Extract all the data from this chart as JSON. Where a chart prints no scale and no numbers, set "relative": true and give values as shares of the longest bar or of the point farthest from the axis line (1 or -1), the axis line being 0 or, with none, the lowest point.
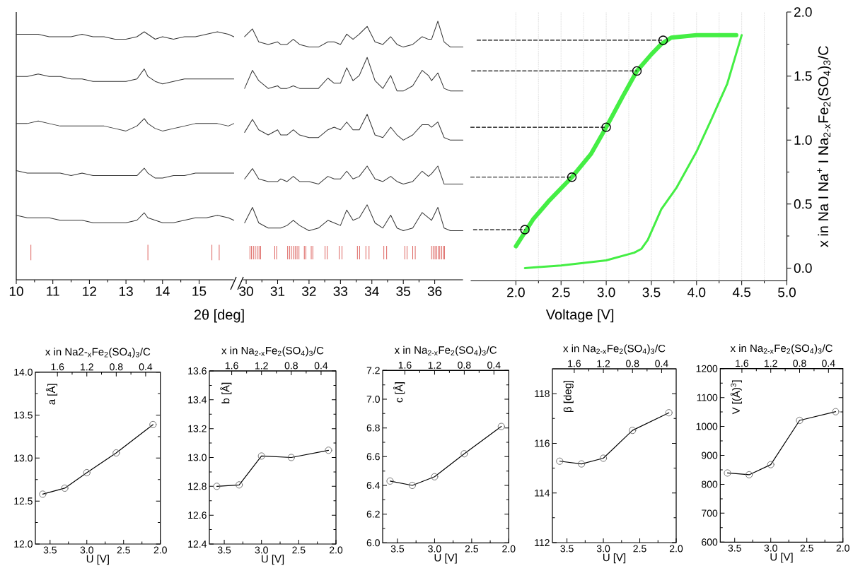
{
  "chart_data": [
    {
      "type": "line",
      "relative": true,
      "xlabel": "2θ [deg]",
      "xlim": [
        10,
        15.95
      ],
      "xticks": [
        10,
        11,
        12,
        13,
        14,
        15
      ],
      "x": [
        10.0,
        10.3,
        10.6,
        10.9,
        11.2,
        11.5,
        11.8,
        12.1,
        12.4,
        12.7,
        13.0,
        13.3,
        13.5,
        13.6,
        13.8,
        14.0,
        14.3,
        14.6,
        14.9,
        15.2,
        15.5,
        15.8,
        15.95
      ],
      "series": [
        {
          "color": "#333333",
          "values": [
            0.99,
            0.99,
            0.99,
            0.98,
            0.98,
            0.98,
            0.99,
            0.98,
            0.98,
            0.97,
            0.97,
            0.98,
            1.0,
            0.99,
            0.97,
            0.98,
            0.97,
            0.98,
            0.98,
            0.99,
            1.0,
            0.99,
            0.98
          ]
        },
        {
          "color": "#333333",
          "values": [
            0.82,
            0.82,
            0.83,
            0.82,
            0.82,
            0.81,
            0.81,
            0.8,
            0.8,
            0.8,
            0.8,
            0.81,
            0.85,
            0.82,
            0.8,
            0.79,
            0.8,
            0.81,
            0.81,
            0.81,
            0.81,
            0.81,
            0.81
          ]
        },
        {
          "color": "#333333",
          "values": [
            0.63,
            0.63,
            0.64,
            0.63,
            0.62,
            0.62,
            0.62,
            0.62,
            0.62,
            0.61,
            0.6,
            0.62,
            0.65,
            0.63,
            0.61,
            0.6,
            0.61,
            0.62,
            0.63,
            0.63,
            0.63,
            0.62,
            0.63
          ]
        },
        {
          "color": "#333333",
          "values": [
            0.44,
            0.43,
            0.43,
            0.43,
            0.43,
            0.42,
            0.43,
            0.42,
            0.42,
            0.42,
            0.42,
            0.42,
            0.45,
            0.43,
            0.41,
            0.41,
            0.42,
            0.42,
            0.43,
            0.43,
            0.43,
            0.43,
            0.43
          ]
        },
        {
          "color": "#333333",
          "values": [
            0.26,
            0.25,
            0.25,
            0.25,
            0.24,
            0.24,
            0.24,
            0.23,
            0.23,
            0.23,
            0.23,
            0.24,
            0.27,
            0.25,
            0.24,
            0.23,
            0.23,
            0.24,
            0.25,
            0.25,
            0.26,
            0.25,
            0.24
          ]
        },
        {
          "color": "#d9534f",
          "x": [
            10.4,
            10.4,
            null,
            13.6,
            13.6,
            null,
            15.35,
            15.35,
            null,
            15.55,
            15.55,
            null
          ],
          "values": [
            0.08,
            0.14,
            null,
            0.08,
            0.14,
            null,
            0.08,
            0.14,
            null,
            0.08,
            0.14,
            null
          ]
        }
      ]
    },
    {
      "type": "line",
      "relative": true,
      "xlim": [
        29.9,
        36.9
      ],
      "xticks": [
        30,
        31,
        32,
        33,
        34,
        35,
        36
      ],
      "x": [
        29.95,
        30.2,
        30.4,
        30.7,
        31.0,
        31.1,
        31.3,
        31.5,
        31.7,
        32.0,
        32.3,
        32.6,
        32.8,
        33.0,
        33.2,
        33.4,
        33.6,
        33.85,
        34.1,
        34.35,
        34.6,
        34.8,
        35.0,
        35.3,
        35.6,
        35.8,
        35.9,
        36.1,
        36.3,
        36.5,
        36.9
      ],
      "series": [
        {
          "color": "#333333",
          "values": [
            0.94,
            0.97,
            0.92,
            0.91,
            0.92,
            0.91,
            0.91,
            0.93,
            0.91,
            0.9,
            0.9,
            0.92,
            0.92,
            0.91,
            0.95,
            0.93,
            0.95,
            0.98,
            0.92,
            0.91,
            0.94,
            0.91,
            0.9,
            0.91,
            0.94,
            0.93,
            0.93,
            1.0,
            0.92,
            0.9,
            0.9
          ]
        },
        {
          "color": "#333333",
          "values": [
            0.74,
            0.81,
            0.77,
            0.74,
            0.75,
            0.74,
            0.74,
            0.75,
            0.74,
            0.74,
            0.74,
            0.78,
            0.76,
            0.76,
            0.82,
            0.77,
            0.79,
            0.86,
            0.77,
            0.74,
            0.79,
            0.73,
            0.73,
            0.75,
            0.81,
            0.79,
            0.77,
            0.8,
            0.74,
            0.73,
            0.73
          ]
        },
        {
          "color": "#333333",
          "values": [
            0.57,
            0.62,
            0.58,
            0.56,
            0.58,
            0.56,
            0.56,
            0.58,
            0.56,
            0.55,
            0.55,
            0.58,
            0.59,
            0.58,
            0.61,
            0.58,
            0.58,
            0.64,
            0.56,
            0.55,
            0.59,
            0.56,
            0.54,
            0.56,
            0.6,
            0.6,
            0.59,
            0.61,
            0.55,
            0.54,
            0.54
          ]
        },
        {
          "color": "#333333",
          "values": [
            0.39,
            0.43,
            0.39,
            0.38,
            0.38,
            0.39,
            0.38,
            0.4,
            0.38,
            0.38,
            0.37,
            0.4,
            0.39,
            0.39,
            0.42,
            0.39,
            0.4,
            0.44,
            0.39,
            0.38,
            0.4,
            0.38,
            0.37,
            0.38,
            0.42,
            0.4,
            0.41,
            0.44,
            0.37,
            0.37,
            0.37
          ]
        },
        {
          "color": "#333333",
          "values": [
            0.22,
            0.28,
            0.22,
            0.2,
            0.2,
            0.2,
            0.21,
            0.23,
            0.21,
            0.19,
            0.2,
            0.23,
            0.22,
            0.21,
            0.27,
            0.23,
            0.24,
            0.29,
            0.22,
            0.2,
            0.25,
            0.2,
            0.19,
            0.2,
            0.26,
            0.24,
            0.23,
            0.28,
            0.2,
            0.19,
            0.19
          ]
        },
        {
          "color": "#d9534f",
          "x": [
            30.12,
            30.12,
            null,
            30.17,
            30.17,
            null,
            30.23,
            30.23,
            null,
            30.29,
            30.29,
            null,
            30.35,
            30.35,
            null,
            30.41,
            30.41,
            null,
            30.46,
            30.46,
            null,
            30.91,
            30.91,
            null,
            30.97,
            30.97,
            null,
            31.32,
            31.32,
            null,
            31.38,
            31.38,
            null,
            31.44,
            31.44,
            null,
            31.5,
            31.5,
            null,
            31.56,
            31.56,
            null,
            31.62,
            31.62,
            null,
            31.68,
            31.68,
            null,
            31.85,
            31.85,
            null,
            31.9,
            31.9,
            null,
            32.07,
            32.07,
            null,
            32.12,
            32.12,
            null,
            32.51,
            32.51,
            null,
            32.58,
            32.58,
            null,
            32.96,
            32.96,
            null,
            33.05,
            33.05,
            null,
            33.54,
            33.54,
            null,
            33.61,
            33.61,
            null,
            33.81,
            33.81,
            null,
            33.91,
            33.91,
            null,
            34.38,
            34.38,
            null,
            34.47,
            34.47,
            null,
            35.05,
            35.05,
            null,
            35.12,
            35.12,
            null,
            35.3,
            35.3,
            null,
            35.38,
            35.38,
            null,
            35.9,
            35.9,
            null,
            35.95,
            35.95,
            null,
            36.01,
            36.01,
            null,
            36.06,
            36.06,
            null,
            36.11,
            36.11,
            null,
            36.16,
            36.16,
            null,
            36.22,
            36.22,
            null,
            36.28,
            36.28,
            null,
            36.31,
            36.31,
            null
          ],
          "values": [
            0.08,
            0.13,
            null,
            0.08,
            0.13,
            null,
            0.08,
            0.13,
            null,
            0.08,
            0.13,
            null,
            0.08,
            0.13,
            null,
            0.08,
            0.13,
            null,
            0.08,
            0.13,
            null,
            0.08,
            0.13,
            null,
            0.08,
            0.13,
            null,
            0.08,
            0.13,
            null,
            0.08,
            0.13,
            null,
            0.08,
            0.13,
            null,
            0.08,
            0.13,
            null,
            0.08,
            0.13,
            null,
            0.08,
            0.13,
            null,
            0.08,
            0.13,
            null,
            0.08,
            0.13,
            null,
            0.08,
            0.13,
            null,
            0.08,
            0.13,
            null,
            0.08,
            0.13,
            null,
            0.08,
            0.13,
            null,
            0.08,
            0.13,
            null,
            0.08,
            0.13,
            null,
            0.08,
            0.13,
            null,
            0.08,
            0.13,
            null,
            0.08,
            0.13,
            null,
            0.08,
            0.13,
            null,
            0.08,
            0.13,
            null,
            0.08,
            0.13,
            null,
            0.08,
            0.13,
            null,
            0.08,
            0.13,
            null,
            0.08,
            0.13,
            null,
            0.08,
            0.13,
            null,
            0.08,
            0.13,
            null,
            0.08,
            0.13,
            null,
            0.08,
            0.13,
            null,
            0.08,
            0.13,
            null,
            0.08,
            0.13,
            null,
            0.08,
            0.13,
            null,
            0.08,
            0.13,
            null,
            0.08,
            0.13,
            null,
            0.08,
            0.13,
            null,
            0.08,
            0.13,
            null
          ]
        }
      ]
    },
    {
      "type": "line",
      "xlabel": "Voltage [V]",
      "ylabel": "x in Na I Na$^{+}$ I Na$_{2-x}$Fe$_{2}$(SO$_{4}$)$_{3}$/C",
      "grid": "x",
      "xlim": [
        1.5,
        5.0
      ],
      "xticks": [
        {
          "value": 2,
          "label": "2.0"
        },
        2.5,
        {
          "value": 3,
          "label": "3.0"
        },
        3.5,
        {
          "value": 4,
          "label": "4.0"
        },
        4.5,
        {
          "value": 5,
          "label": "5.0"
        }
      ],
      "ylim": [
        -0.1,
        2.0
      ],
      "yticks": [
        {
          "value": 0,
          "label": "0.0"
        },
        0.5,
        {
          "value": 1,
          "label": "1.0"
        },
        1.5,
        {
          "value": 2,
          "label": "2.0"
        }
      ],
      "series": [
        {
          "color": "#44ee44",
          "x": [
            2.1,
            2.5,
            3.0,
            3.31,
            3.39,
            3.46,
            3.61,
            3.78,
            4.0,
            4.17,
            4.34,
            4.5
          ],
          "values": [
            0.0,
            0.02,
            0.06,
            0.12,
            0.15,
            0.22,
            0.46,
            0.63,
            0.91,
            1.17,
            1.44,
            1.82
          ]
        },
        {
          "color": "#44ee44",
          "x": [
            4.44,
            4.0,
            3.72,
            3.61,
            3.5,
            3.34,
            3.19,
            3.0,
            2.83,
            2.62,
            2.36,
            2.19,
            2.0
          ],
          "values": [
            1.82,
            1.82,
            1.8,
            1.75,
            1.67,
            1.54,
            1.35,
            1.1,
            0.89,
            0.71,
            0.52,
            0.38,
            0.17
          ]
        },
        {
          "color": "#000000",
          "line_style": "dashed",
          "x": [
            1.53,
            2.1,
            null,
            1.5,
            2.62,
            null,
            1.5,
            3.0,
            null,
            1.51,
            3.34,
            null,
            1.57,
            3.63,
            null
          ],
          "values": [
            0.3,
            0.3,
            null,
            0.71,
            0.71,
            null,
            1.1,
            1.1,
            null,
            1.54,
            1.54,
            null,
            1.78,
            1.78,
            null
          ]
        },
        {
          "type": "scatter",
          "marker": "circle",
          "color": "#000000",
          "x": [
            2.1,
            2.62,
            3.0,
            3.34,
            3.63
          ],
          "values": [
            0.3,
            0.71,
            1.1,
            1.54,
            1.78
          ]
        }
      ]
    },
    {
      "type": "line",
      "marker": "circle",
      "xlabel": "U [V]",
      "x2label": "x in Na2-$_{x}$Fe$_{2}$(SO$_{4}$)$_{3}$/C",
      "ylabel": "a [Å]",
      "x": [
        3.6,
        3.3,
        3.0,
        2.6,
        2.1
      ],
      "xlim": [
        3.7,
        2.0
      ],
      "xticks": [
        3.5,
        {
          "value": 3,
          "label": "3.0"
        },
        2.5,
        {
          "value": 2,
          "label": "2.0"
        }
      ],
      "x2lim": [
        1.9,
        0.2
      ],
      "x2ticks": [
        1.6,
        1.2,
        0.8,
        0.4
      ],
      "ylim": [
        12,
        14
      ],
      "yticks": [
        {
          "value": 12,
          "label": "12.0"
        },
        12.5,
        {
          "value": 13,
          "label": "13.0"
        },
        13.5,
        {
          "value": 14,
          "label": "14.0"
        }
      ],
      "series": [
        {
          "color": "#000000",
          "values": [
            12.58,
            12.65,
            12.83,
            13.06,
            13.39
          ]
        }
      ]
    },
    {
      "type": "line",
      "marker": "circle",
      "xlabel": "U [V]",
      "x2label": "x in Na$_{2-x}$Fe$_{2}$(SO$_{4}$)$_{3}$/C",
      "ylabel": "b [Å]",
      "x": [
        3.6,
        3.3,
        3.0,
        2.6,
        2.1
      ],
      "xlim": [
        3.7,
        2.0
      ],
      "xticks": [
        3.5,
        {
          "value": 3,
          "label": "3.0"
        },
        2.5,
        {
          "value": 2,
          "label": "2.0"
        }
      ],
      "x2lim": [
        1.9,
        0.2
      ],
      "x2ticks": [
        1.6,
        1.2,
        0.8,
        0.4
      ],
      "ylim": [
        12.4,
        13.6
      ],
      "yticks": [
        12.4,
        12.6,
        12.8,
        {
          "value": 13,
          "label": "13.0"
        },
        13.2,
        13.4,
        13.6
      ],
      "series": [
        {
          "color": "#000000",
          "values": [
            12.8,
            12.81,
            13.01,
            13.0,
            13.05
          ]
        }
      ]
    },
    {
      "type": "line",
      "marker": "circle",
      "xlabel": "U [V]",
      "x2label": "x in Na$_{2-x}$Fe$_{2}$(SO$_{4}$)$_{3}$/C",
      "ylabel": "c [Å]",
      "x": [
        3.6,
        3.3,
        3.0,
        2.6,
        2.1
      ],
      "xlim": [
        3.7,
        2.0
      ],
      "xticks": [
        3.5,
        {
          "value": 3,
          "label": "3.0"
        },
        2.5,
        {
          "value": 2,
          "label": "2.0"
        }
      ],
      "x2lim": [
        1.9,
        0.2
      ],
      "x2ticks": [
        1.6,
        1.2,
        0.8,
        0.4
      ],
      "ylim": [
        6.0,
        7.2
      ],
      "yticks": [
        {
          "value": 6,
          "label": "6.0"
        },
        6.2,
        6.4,
        6.6,
        6.8,
        {
          "value": 7,
          "label": "7.0"
        },
        7.2
      ],
      "series": [
        {
          "color": "#000000",
          "values": [
            6.43,
            6.4,
            6.46,
            6.62,
            6.81
          ]
        }
      ]
    },
    {
      "type": "line",
      "marker": "circle",
      "xlabel": "U [V]",
      "x2label": "x in Na$_{2-x}$Fe$_{2}$(SO$_{4}$)$_{3}$/C",
      "ylabel": "β [deg]",
      "x": [
        3.6,
        3.3,
        3.0,
        2.6,
        2.1
      ],
      "xlim": [
        3.7,
        2.0
      ],
      "xticks": [
        3.5,
        {
          "value": 3,
          "label": "3.0"
        },
        2.5,
        {
          "value": 2,
          "label": "2.0"
        }
      ],
      "x2lim": [
        1.9,
        0.2
      ],
      "x2ticks": [
        1.6,
        1.2,
        0.8,
        0.4
      ],
      "ylim": [
        112,
        119
      ],
      "yticks": [
        112,
        114,
        116,
        118
      ],
      "series": [
        {
          "color": "#000000",
          "values": [
            115.28,
            115.17,
            115.4,
            116.52,
            117.23
          ]
        }
      ]
    },
    {
      "type": "line",
      "marker": "circle",
      "xlabel": "U [V]",
      "x2label": "x in Na$_{2-x}$Fe$_{2}$(SO$_{4}$)$_{3}$/C",
      "ylabel": "V [(Å)$^{3}$]",
      "x": [
        3.6,
        3.3,
        3.0,
        2.6,
        2.1
      ],
      "xlim": [
        3.7,
        2.0
      ],
      "xticks": [
        3.5,
        {
          "value": 3,
          "label": "3.0"
        },
        2.5,
        {
          "value": 2,
          "label": "2.0"
        }
      ],
      "x2lim": [
        1.9,
        0.2
      ],
      "x2ticks": [
        1.6,
        1.2,
        0.8,
        0.4
      ],
      "ylim": [
        600,
        1200
      ],
      "yticks": [
        600,
        700,
        800,
        900,
        1000,
        1100,
        1200
      ],
      "series": [
        {
          "color": "#000000",
          "values": [
            839,
            833,
            868,
            1021,
            1051
          ]
        }
      ]
    }
  ]
}
